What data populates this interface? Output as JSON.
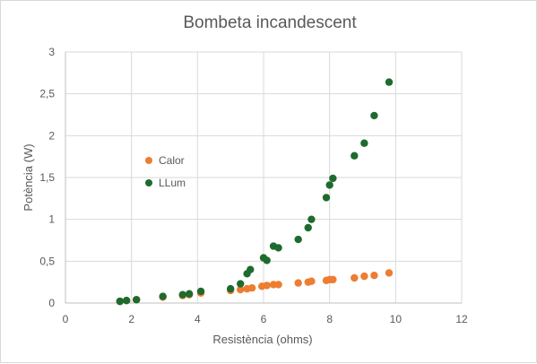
{
  "chart_data": {
    "type": "scatter",
    "title": "Bombeta incandescent",
    "xlabel": "Resistència (ohms)",
    "ylabel": "Potència (W)",
    "xlim": [
      0,
      12
    ],
    "ylim": [
      0,
      3
    ],
    "x_ticks": [
      "0",
      "2",
      "4",
      "6",
      "8",
      "10",
      "12"
    ],
    "y_ticks": [
      "0",
      "0,5",
      "1",
      "1,5",
      "2",
      "2,5",
      "3"
    ],
    "grid": "vertical and horizontal major gridlines",
    "legend_position": "left-center",
    "series": [
      {
        "name": "Calor",
        "color": "#ED7D31",
        "points": [
          [
            1.65,
            0.02
          ],
          [
            1.85,
            0.03
          ],
          [
            2.15,
            0.04
          ],
          [
            2.95,
            0.07
          ],
          [
            3.55,
            0.09
          ],
          [
            3.75,
            0.1
          ],
          [
            4.1,
            0.12
          ],
          [
            5.0,
            0.15
          ],
          [
            5.3,
            0.16
          ],
          [
            5.5,
            0.17
          ],
          [
            5.65,
            0.18
          ],
          [
            5.95,
            0.2
          ],
          [
            6.1,
            0.21
          ],
          [
            6.3,
            0.22
          ],
          [
            6.45,
            0.22
          ],
          [
            7.05,
            0.24
          ],
          [
            7.35,
            0.25
          ],
          [
            7.45,
            0.26
          ],
          [
            7.9,
            0.27
          ],
          [
            8.0,
            0.28
          ],
          [
            8.1,
            0.28
          ],
          [
            8.75,
            0.3
          ],
          [
            9.05,
            0.32
          ],
          [
            9.35,
            0.33
          ],
          [
            9.8,
            0.36
          ]
        ]
      },
      {
        "name": "LLum",
        "color": "#1E6B2D",
        "points": [
          [
            1.65,
            0.02
          ],
          [
            1.85,
            0.03
          ],
          [
            2.15,
            0.04
          ],
          [
            2.95,
            0.08
          ],
          [
            3.55,
            0.1
          ],
          [
            3.75,
            0.11
          ],
          [
            4.1,
            0.14
          ],
          [
            5.0,
            0.17
          ],
          [
            5.3,
            0.23
          ],
          [
            5.5,
            0.35
          ],
          [
            5.6,
            0.4
          ],
          [
            6.0,
            0.54
          ],
          [
            6.1,
            0.51
          ],
          [
            6.3,
            0.68
          ],
          [
            6.45,
            0.66
          ],
          [
            7.05,
            0.76
          ],
          [
            7.35,
            0.9
          ],
          [
            7.45,
            1.0
          ],
          [
            7.9,
            1.26
          ],
          [
            8.0,
            1.41
          ],
          [
            8.1,
            1.49
          ],
          [
            8.75,
            1.76
          ],
          [
            9.05,
            1.91
          ],
          [
            9.35,
            2.24
          ],
          [
            9.8,
            2.64
          ]
        ]
      }
    ]
  }
}
